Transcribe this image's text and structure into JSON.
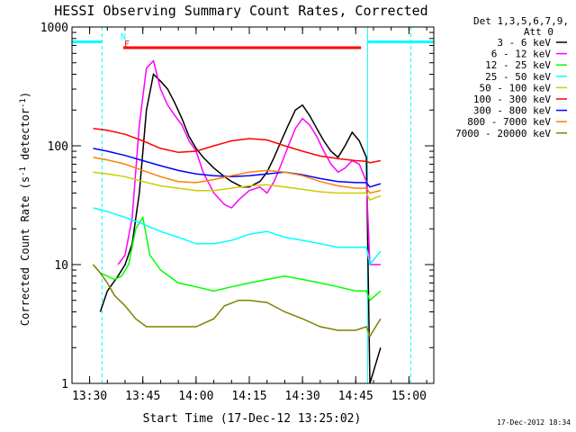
{
  "chart_data": {
    "type": "line",
    "title": "HESSI Observing Summary Count Rates, Corrected",
    "xlabel": "Start Time (17-Dec-12 13:25:02)",
    "ylabel_main": "Corrected Count Rate (s",
    "ylabel_sup1": "-1",
    "ylabel_mid": " detector",
    "ylabel_sup2": "-1",
    "ylabel_end": ")",
    "xscale": "linear",
    "yscale": "log",
    "xlim": [
      "13:25:02",
      "15:07:00"
    ],
    "ylim": [
      1,
      1000
    ],
    "x_ticks": [
      "13:30",
      "13:45",
      "14:00",
      "14:15",
      "14:30",
      "14:45",
      "15:00"
    ],
    "y_ticks": [
      "1",
      "10",
      "100",
      "1000"
    ],
    "legend": {
      "position": "right",
      "header": [
        "Det 1,3,5,6,7,9,",
        "Att 0"
      ]
    },
    "flags": {
      "N_label": "N",
      "F_label": "F"
    },
    "series": [
      {
        "name": "3 - 6 keV",
        "color": "#000000",
        "x": [
          "13:33",
          "13:35",
          "13:38",
          "13:40",
          "13:42",
          "13:44",
          "13:46",
          "13:48",
          "13:50",
          "13:52",
          "13:54",
          "13:56",
          "13:58",
          "14:00",
          "14:02",
          "14:05",
          "14:08",
          "14:10",
          "14:13",
          "14:15",
          "14:18",
          "14:20",
          "14:22",
          "14:24",
          "14:26",
          "14:28",
          "14:30",
          "14:32",
          "14:34",
          "14:36",
          "14:38",
          "14:40",
          "14:42",
          "14:44",
          "14:46",
          "14:48",
          "14:49",
          "14:52"
        ],
        "y": [
          4,
          6,
          8,
          10,
          15,
          40,
          200,
          400,
          350,
          300,
          230,
          170,
          120,
          95,
          80,
          65,
          55,
          50,
          45,
          45,
          50,
          60,
          80,
          110,
          150,
          200,
          220,
          180,
          140,
          110,
          90,
          80,
          100,
          130,
          110,
          80,
          1,
          2
        ]
      },
      {
        "name": "6 - 12 keV",
        "color": "#ff00ff",
        "x": [
          "13:38",
          "13:40",
          "13:42",
          "13:44",
          "13:46",
          "13:48",
          "13:50",
          "13:52",
          "13:54",
          "13:56",
          "13:58",
          "14:00",
          "14:02",
          "14:05",
          "14:08",
          "14:10",
          "14:12",
          "14:15",
          "14:18",
          "14:20",
          "14:22",
          "14:24",
          "14:26",
          "14:28",
          "14:30",
          "14:32",
          "14:34",
          "14:36",
          "14:38",
          "14:40",
          "14:42",
          "14:44",
          "14:46",
          "14:48",
          "14:49",
          "14:52"
        ],
        "y": [
          10,
          12,
          25,
          150,
          450,
          520,
          300,
          220,
          180,
          150,
          110,
          90,
          60,
          40,
          32,
          30,
          35,
          42,
          45,
          40,
          50,
          70,
          100,
          140,
          170,
          150,
          120,
          90,
          70,
          60,
          65,
          75,
          70,
          50,
          10,
          10
        ]
      },
      {
        "name": "12 - 25 keV",
        "color": "#00ff00",
        "x": [
          "13:31",
          "13:33",
          "13:35",
          "13:37",
          "13:39",
          "13:41",
          "13:43",
          "13:45",
          "13:47",
          "13:50",
          "13:55",
          "14:00",
          "14:05",
          "14:10",
          "14:15",
          "14:20",
          "14:25",
          "14:30",
          "14:35",
          "14:40",
          "14:45",
          "14:48",
          "14:49",
          "14:52"
        ],
        "y": [
          10,
          8.5,
          8,
          7.5,
          8,
          10,
          20,
          25,
          12,
          9,
          7,
          6.5,
          6,
          6.5,
          7,
          7.5,
          8,
          7.5,
          7,
          6.5,
          6,
          6,
          5,
          6
        ]
      },
      {
        "name": "25 - 50 keV",
        "color": "#00ffff",
        "x": [
          "13:31",
          "13:35",
          "13:40",
          "13:45",
          "13:50",
          "13:55",
          "14:00",
          "14:05",
          "14:10",
          "14:15",
          "14:20",
          "14:25",
          "14:30",
          "14:35",
          "14:40",
          "14:45",
          "14:48",
          "14:49",
          "14:52"
        ],
        "y": [
          30,
          28,
          25,
          22,
          19,
          17,
          15,
          15,
          16,
          18,
          19,
          17,
          16,
          15,
          14,
          14,
          14,
          10,
          13
        ]
      },
      {
        "name": "50 - 100 keV",
        "color": "#cccc00",
        "x": [
          "13:31",
          "13:35",
          "13:40",
          "13:45",
          "13:50",
          "13:55",
          "14:00",
          "14:05",
          "14:10",
          "14:15",
          "14:20",
          "14:25",
          "14:30",
          "14:35",
          "14:40",
          "14:45",
          "14:48",
          "14:49",
          "14:52"
        ],
        "y": [
          60,
          58,
          55,
          50,
          46,
          44,
          42,
          42,
          44,
          46,
          47,
          45,
          43,
          41,
          40,
          40,
          40,
          35,
          38
        ]
      },
      {
        "name": "100 - 300 keV",
        "color": "#ff0000",
        "x": [
          "13:31",
          "13:35",
          "13:40",
          "13:45",
          "13:50",
          "13:55",
          "14:00",
          "14:05",
          "14:10",
          "14:15",
          "14:20",
          "14:25",
          "14:30",
          "14:35",
          "14:40",
          "14:45",
          "14:48",
          "14:49",
          "14:52"
        ],
        "y": [
          140,
          135,
          125,
          110,
          95,
          88,
          90,
          100,
          110,
          115,
          112,
          100,
          90,
          82,
          78,
          75,
          74,
          72,
          75
        ]
      },
      {
        "name": "300 - 800 keV",
        "color": "#0000ff",
        "x": [
          "13:31",
          "13:35",
          "13:40",
          "13:45",
          "13:50",
          "13:55",
          "14:00",
          "14:05",
          "14:10",
          "14:15",
          "14:20",
          "14:25",
          "14:30",
          "14:35",
          "14:40",
          "14:45",
          "14:48",
          "14:49",
          "14:52"
        ],
        "y": [
          95,
          90,
          83,
          75,
          68,
          62,
          58,
          56,
          55,
          56,
          58,
          60,
          57,
          53,
          50,
          49,
          49,
          45,
          48
        ]
      },
      {
        "name": "800 - 7000 keV",
        "color": "#ff8000",
        "x": [
          "13:31",
          "13:35",
          "13:40",
          "13:45",
          "13:50",
          "13:55",
          "14:00",
          "14:05",
          "14:10",
          "14:15",
          "14:20",
          "14:25",
          "14:30",
          "14:35",
          "14:40",
          "14:45",
          "14:48",
          "14:49",
          "14:52"
        ],
        "y": [
          80,
          76,
          70,
          62,
          55,
          50,
          49,
          52,
          56,
          60,
          62,
          60,
          56,
          50,
          46,
          44,
          44,
          40,
          42
        ]
      },
      {
        "name": "7000 - 20000 keV",
        "color": "#808000",
        "x": [
          "13:31",
          "13:33",
          "13:35",
          "13:37",
          "13:40",
          "13:43",
          "13:46",
          "13:50",
          "13:55",
          "14:00",
          "14:05",
          "14:08",
          "14:12",
          "14:15",
          "14:20",
          "14:25",
          "14:30",
          "14:35",
          "14:40",
          "14:45",
          "14:48",
          "14:49",
          "14:52"
        ],
        "y": [
          10,
          8.5,
          7,
          5.5,
          4.5,
          3.5,
          3,
          3,
          3,
          3,
          3.5,
          4.5,
          5,
          5,
          4.8,
          4,
          3.5,
          3,
          2.8,
          2.8,
          3,
          2.5,
          3.5
        ]
      }
    ],
    "attenuator_segments": [
      {
        "start": "13:25:02",
        "end": "13:33:30",
        "level": 750
      },
      {
        "start": "14:48:20",
        "end": "15:07:00",
        "level": 750
      }
    ],
    "flare_segment": {
      "start": "13:39:30",
      "end": "14:46:30",
      "level": 670
    },
    "vertical_markers": [
      {
        "time": "13:33:30",
        "color": "#00ffff",
        "style": "dashed"
      },
      {
        "time": "14:48:20",
        "color": "#00ffff",
        "style": "solid"
      },
      {
        "time": "15:00:30",
        "color": "#00ffff",
        "style": "dashed"
      }
    ]
  },
  "footer": "17-Dec-2012 18:34"
}
